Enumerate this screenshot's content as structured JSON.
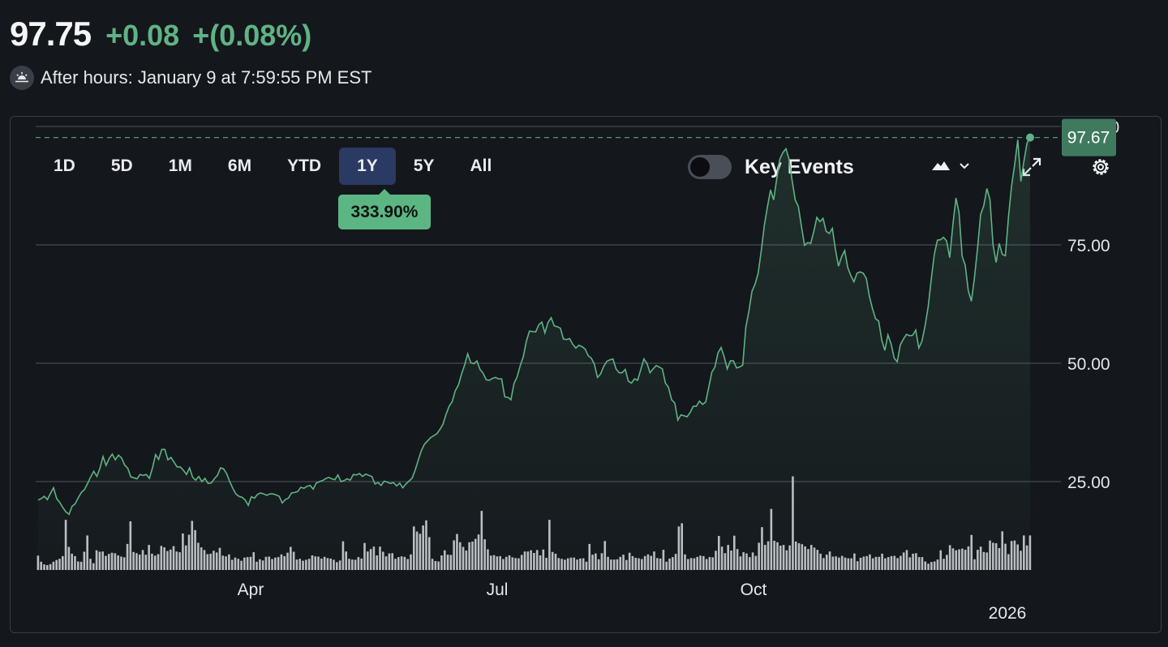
{
  "quote": {
    "price": "97.75",
    "change": "+0.08",
    "change_pct": "+(0.08%)",
    "session_text": "After hours: January 9 at 7:59:55 PM EST"
  },
  "colors": {
    "positive": "#5fb384",
    "background": "#14171c",
    "active_tab": "#2b3a63"
  },
  "ranges": [
    "1D",
    "5D",
    "1M",
    "6M",
    "YTD",
    "1Y",
    "5Y",
    "All"
  ],
  "active_range": "1Y",
  "range_change_label": "333.90%",
  "key_events": {
    "label": "Key Events",
    "enabled": false
  },
  "toolbar_icons": [
    "mountain-chart-icon",
    "chevron-down-icon",
    "expand-icon",
    "gear-icon"
  ],
  "chart_data": {
    "type": "area",
    "ylim": [
      0,
      100
    ],
    "y_ticks": [
      25,
      50,
      75,
      100
    ],
    "y_tick_labels": [
      "25.00",
      "50.00",
      "75.00",
      "100.00"
    ],
    "x_labels": [
      "Apr",
      "Jul",
      "Oct",
      "2026"
    ],
    "last_value": 97.67,
    "last_value_label": "97.67",
    "price_series": [
      21.1,
      21.4,
      21.9,
      21.2,
      22.5,
      23.7,
      21.4,
      20.6,
      19.5,
      18.6,
      18.1,
      19.8,
      20.3,
      21.6,
      22.7,
      23.3,
      24.6,
      26.0,
      27.2,
      26.1,
      27.8,
      30.3,
      28.4,
      29.9,
      30.8,
      29.6,
      30.6,
      30.0,
      28.5,
      27.8,
      26.0,
      25.8,
      25.6,
      26.5,
      26.3,
      26.5,
      25.7,
      27.9,
      30.7,
      29.7,
      31.8,
      31.8,
      29.6,
      30.1,
      29.1,
      28.1,
      28.1,
      27.4,
      26.5,
      27.9,
      25.9,
      25.3,
      26.1,
      25.0,
      25.7,
      24.6,
      24.7,
      25.6,
      26.3,
      27.9,
      27.7,
      26.7,
      25.0,
      23.6,
      22.4,
      21.9,
      21.7,
      21.1,
      20.0,
      21.8,
      21.5,
      22.3,
      22.6,
      22.4,
      22.1,
      22.4,
      22.4,
      22.2,
      21.9,
      20.5,
      21.2,
      21.5,
      22.6,
      22.7,
      22.9,
      23.8,
      23.6,
      24.0,
      24.2,
      23.4,
      24.7,
      25.0,
      25.2,
      25.6,
      25.9,
      25.6,
      25.4,
      26.4,
      25.0,
      25.2,
      25.6,
      25.3,
      26.5,
      26.4,
      26.7,
      26.1,
      26.6,
      26.3,
      26.1,
      24.5,
      24.8,
      24.2,
      25.1,
      24.9,
      24.6,
      24.8,
      24.1,
      24.7,
      23.7,
      24.5,
      25.1,
      25.7,
      27.4,
      29.5,
      31.5,
      32.9,
      33.6,
      34.3,
      34.7,
      35.1,
      36.0,
      37.1,
      39.2,
      40.9,
      41.9,
      44.2,
      45.4,
      47.7,
      49.6,
      52.0,
      50.1,
      49.9,
      50.5,
      48.7,
      47.9,
      46.5,
      46.4,
      46.8,
      47.0,
      46.7,
      46.7,
      42.9,
      42.8,
      42.3,
      45.7,
      47.1,
      49.5,
      51.4,
      54.7,
      56.8,
      56.7,
      56.6,
      58.1,
      58.7,
      56.4,
      58.6,
      59.6,
      57.9,
      57.7,
      57.4,
      55.1,
      55.0,
      55.2,
      54.0,
      53.2,
      53.8,
      53.5,
      53.0,
      51.6,
      51.1,
      49.8,
      47.0,
      47.7,
      49.3,
      50.4,
      50.7,
      50.9,
      48.8,
      48.0,
      48.0,
      48.7,
      46.2,
      45.8,
      46.7,
      46.4,
      48.6,
      50.9,
      50.0,
      48.0,
      48.8,
      49.5,
      49.2,
      48.8,
      45.8,
      44.9,
      42.3,
      41.6,
      38.0,
      39.1,
      38.9,
      38.7,
      39.6,
      40.9,
      40.9,
      42.0,
      41.3,
      41.8,
      44.9,
      48.1,
      49.2,
      52.2,
      53.3,
      51.4,
      48.8,
      50.5,
      50.5,
      49.0,
      49.2,
      49.6,
      57.6,
      61.0,
      65.2,
      66.7,
      69.0,
      73.7,
      79.1,
      83.1,
      86.6,
      84.5,
      88.9,
      93.1,
      94.5,
      95.3,
      93.1,
      88.6,
      84.5,
      83.1,
      78.9,
      74.9,
      75.5,
      75.3,
      77.8,
      80.8,
      79.9,
      80.6,
      77.9,
      77.4,
      78.5,
      74.0,
      70.5,
      72.5,
      73.8,
      70.2,
      68.5,
      67.2,
      69.0,
      69.3,
      69.0,
      67.9,
      64.1,
      61.5,
      59.4,
      58.9,
      54.9,
      52.7,
      56.0,
      54.1,
      51.1,
      50.3,
      53.9,
      55.1,
      56.1,
      55.8,
      55.9,
      57.0,
      53.2,
      54.7,
      57.9,
      61.9,
      67.7,
      73.0,
      76.0,
      76.1,
      76.6,
      75.8,
      72.3,
      79.3,
      84.9,
      81.8,
      72.6,
      70.7,
      65.3,
      63.1,
      68.1,
      74.3,
      81.4,
      83.3,
      86.9,
      84.6,
      75.0,
      71.3,
      75.3,
      73.0,
      72.7,
      80.8,
      87.4,
      92.0,
      97.2,
      88.4,
      92.7,
      96.5,
      97.7
    ],
    "volume_series": [
      5.9,
      3.4,
      2.3,
      2.0,
      2.4,
      3.4,
      4.1,
      4.6,
      5.7,
      20.6,
      9.5,
      6.7,
      5.7,
      3.5,
      3.4,
      7.5,
      14.2,
      4.6,
      2.8,
      8.1,
      7.5,
      7.6,
      5.8,
      6.6,
      7.1,
      6.9,
      6.0,
      5.5,
      5.2,
      10.7,
      20.0,
      7.4,
      6.9,
      6.3,
      8.2,
      6.3,
      10.3,
      6.7,
      5.9,
      6.5,
      9.9,
      9.3,
      7.8,
      8.4,
      9.8,
      7.6,
      7.3,
      15.0,
      10.1,
      14.5,
      20.2,
      16.4,
      11.2,
      9.3,
      8.2,
      6.5,
      6.7,
      7.9,
      7.2,
      9.1,
      5.9,
      5.6,
      6.4,
      4.2,
      5.1,
      4.6,
      3.8,
      5.1,
      5.3,
      5.4,
      7.3,
      3.4,
      4.4,
      3.9,
      5.4,
      5.5,
      4.5,
      5.1,
      5.3,
      6.4,
      5.7,
      7.1,
      9.5,
      7.5,
      4.3,
      4.6,
      3.8,
      4.2,
      4.6,
      6.0,
      5.6,
      5.5,
      4.7,
      5.4,
      4.9,
      4.7,
      4.2,
      3.2,
      3.9,
      11.8,
      7.6,
      4.6,
      4.3,
      4.2,
      5.3,
      4.7,
      11.1,
      7.6,
      8.6,
      9.6,
      6.0,
      9.6,
      7.5,
      5.6,
      6.8,
      6.9,
      4.6,
      5.3,
      5.6,
      5.4,
      4.5,
      6.4,
      17.9,
      15.8,
      14.9,
      18.3,
      20.4,
      13.5,
      4.6,
      3.7,
      3.5,
      6.0,
      8.1,
      6.3,
      6.2,
      12.2,
      14.8,
      11.4,
      9.5,
      8.0,
      11.4,
      11.7,
      12.8,
      14.6,
      24.3,
      12.6,
      8.5,
      5.9,
      6.1,
      5.6,
      5.7,
      4.5,
      5.4,
      6.0,
      5.2,
      4.9,
      4.8,
      6.2,
      7.6,
      7.6,
      8.1,
      7.0,
      8.2,
      6.0,
      8.4,
      5.0,
      20.6,
      7.4,
      6.7,
      4.9,
      4.6,
      4.2,
      4.8,
      5.1,
      5.1,
      4.3,
      4.7,
      4.8,
      3.4,
      10.7,
      6.3,
      6.8,
      4.4,
      6.9,
      11.9,
      5.4,
      4.3,
      4.3,
      4.4,
      5.4,
      6.3,
      4.1,
      7.1,
      5.7,
      5.0,
      4.8,
      4.5,
      5.7,
      6.4,
      5.8,
      7.6,
      4.9,
      4.7,
      8.3,
      3.4,
      4.7,
      5.3,
      6.6,
      17.9,
      19.2,
      6.4,
      4.5,
      4.9,
      4.8,
      5.4,
      5.9,
      5.7,
      4.5,
      5.3,
      5.2,
      7.9,
      14.0,
      9.6,
      6.9,
      10.3,
      8.0,
      14.1,
      8.6,
      5.6,
      7.3,
      6.8,
      5.3,
      7.2,
      5.8,
      11.2,
      17.6,
      10.3,
      11.8,
      25.1,
      12.0,
      11.4,
      10.0,
      10.3,
      8.1,
      10.1,
      38.5,
      11.7,
      11.0,
      10.6,
      9.7,
      8.6,
      10.3,
      9.2,
      8.3,
      6.7,
      4.9,
      6.3,
      7.6,
      5.5,
      5.6,
      5.1,
      5.8,
      5.1,
      4.8,
      4.8,
      6.8,
      3.6,
      5.0,
      5.5,
      5.7,
      6.4,
      4.8,
      5.4,
      5.4,
      6.7,
      4.8,
      5.3,
      5.7,
      5.8,
      4.9,
      5.8,
      7.2,
      8.2,
      5.2,
      6.7,
      6.9,
      5.3,
      5.3,
      3.5,
      2.6,
      3.3,
      3.5,
      4.3,
      8.1,
      4.6,
      6.2,
      10.2,
      8.9,
      8.1,
      8.5,
      8.8,
      8.3,
      9.7,
      14.4,
      4.4,
      8.3,
      9.6,
      7.4,
      7.2,
      12.1,
      11.2,
      11.0,
      9.0,
      15.9,
      10.8,
      6.5,
      11.9,
      12.1,
      10.5,
      7.9,
      14.2,
      10.1,
      14.2
    ]
  }
}
